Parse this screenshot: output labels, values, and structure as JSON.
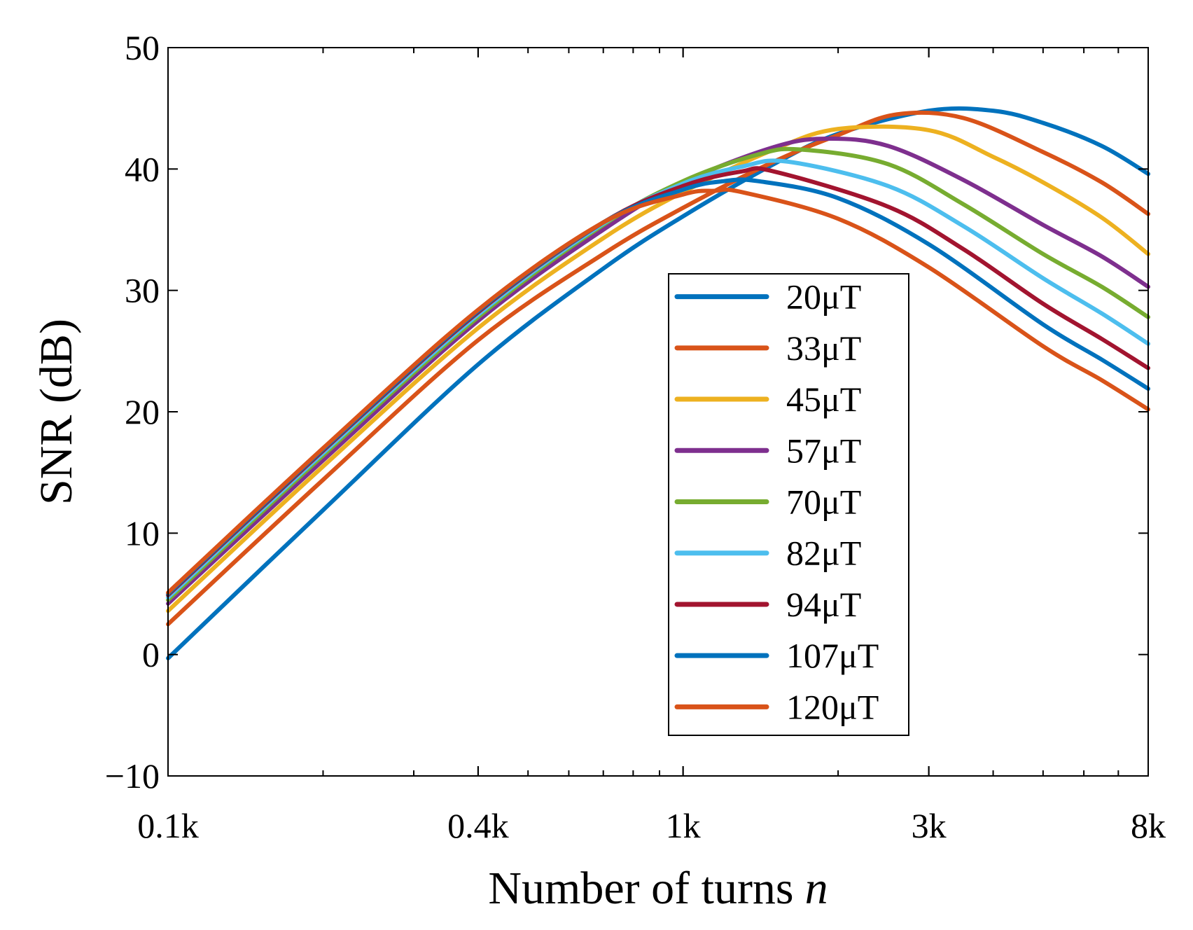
{
  "chart_data": {
    "type": "line",
    "title": "",
    "xlabel": "Number of turns",
    "xlabel_var": "n",
    "ylabel": "SNR (dB)",
    "xscale": "log",
    "xlim": [
      100,
      8000
    ],
    "ylim": [
      -10,
      50
    ],
    "x_ticks": [
      {
        "value": 100,
        "label": "0.1k"
      },
      {
        "value": 400,
        "label": "0.4k"
      },
      {
        "value": 1000,
        "label": "1k"
      },
      {
        "value": 3000,
        "label": "3k"
      },
      {
        "value": 8000,
        "label": "8k"
      }
    ],
    "y_ticks": [
      {
        "value": -10,
        "label": "−10"
      },
      {
        "value": 0,
        "label": "0"
      },
      {
        "value": 10,
        "label": "10"
      },
      {
        "value": 20,
        "label": "20"
      },
      {
        "value": 30,
        "label": "30"
      },
      {
        "value": 40,
        "label": "40"
      },
      {
        "value": 50,
        "label": "50"
      }
    ],
    "legend_position": "center-right",
    "series": [
      {
        "name": "20μT",
        "color": "#0072BD",
        "x": [
          100,
          200,
          400,
          700,
          1000,
          1500,
          2000,
          3000,
          4000,
          5000,
          6500,
          8000
        ],
        "values": [
          -0.3,
          11.9,
          23.9,
          31.8,
          36.1,
          40.4,
          42.9,
          44.8,
          44.8,
          43.8,
          41.9,
          39.6
        ]
      },
      {
        "name": "33μT",
        "color": "#D95319",
        "x": [
          100,
          200,
          400,
          700,
          1000,
          1500,
          2000,
          2600,
          3500,
          5000,
          6500,
          8000
        ],
        "values": [
          2.5,
          14.4,
          25.9,
          33.0,
          36.8,
          40.6,
          42.8,
          44.5,
          44.2,
          41.4,
          38.9,
          36.3
        ]
      },
      {
        "name": "45μT",
        "color": "#EDB120",
        "x": [
          100,
          200,
          400,
          700,
          1000,
          1500,
          2000,
          3000,
          4000,
          5000,
          6500,
          8000
        ],
        "values": [
          3.6,
          15.5,
          26.9,
          34.3,
          38.1,
          41.6,
          43.3,
          43.2,
          41.0,
          38.9,
          36.0,
          33.0
        ]
      },
      {
        "name": "57μT",
        "color": "#7E2F8E",
        "x": [
          100,
          200,
          400,
          700,
          1000,
          1500,
          1900,
          2500,
          3500,
          5000,
          6500,
          8000
        ],
        "values": [
          4.2,
          16.0,
          27.5,
          35.0,
          38.9,
          41.8,
          42.5,
          41.9,
          39.1,
          35.4,
          32.8,
          30.3
        ]
      },
      {
        "name": "70μT",
        "color": "#77AC30",
        "x": [
          100,
          200,
          400,
          700,
          1000,
          1400,
          1700,
          2500,
          3500,
          5000,
          6500,
          8000
        ],
        "values": [
          4.5,
          16.4,
          27.8,
          35.4,
          39.0,
          41.2,
          41.6,
          40.4,
          37.1,
          33.0,
          30.3,
          27.8
        ]
      },
      {
        "name": "82μT",
        "color": "#4DBEEE",
        "x": [
          100,
          200,
          400,
          700,
          1000,
          1300,
          1600,
          2500,
          3500,
          5000,
          6500,
          8000
        ],
        "values": [
          4.7,
          16.6,
          28.0,
          35.5,
          38.8,
          40.2,
          40.6,
          38.6,
          35.3,
          31.0,
          28.1,
          25.6
        ]
      },
      {
        "name": "94μT",
        "color": "#A2142F",
        "x": [
          100,
          200,
          400,
          700,
          1000,
          1300,
          1500,
          2500,
          3500,
          5000,
          6500,
          8000
        ],
        "values": [
          4.9,
          16.8,
          28.2,
          35.6,
          38.6,
          39.8,
          39.8,
          36.9,
          33.4,
          28.9,
          26.0,
          23.6
        ]
      },
      {
        "name": "107μT",
        "color": "#0072BD",
        "x": [
          100,
          200,
          400,
          700,
          1000,
          1200,
          1400,
          2000,
          3000,
          5000,
          6500,
          8000
        ],
        "values": [
          5.0,
          16.9,
          28.3,
          35.6,
          38.3,
          39.0,
          39.0,
          37.6,
          33.8,
          27.2,
          24.3,
          21.9
        ]
      },
      {
        "name": "120μT",
        "color": "#D95319",
        "x": [
          100,
          200,
          400,
          700,
          1000,
          1150,
          1300,
          2000,
          3000,
          5000,
          6500,
          8000
        ],
        "values": [
          5.1,
          17.0,
          28.4,
          35.6,
          37.9,
          38.2,
          38.1,
          35.9,
          31.9,
          25.4,
          22.6,
          20.2
        ]
      }
    ]
  }
}
